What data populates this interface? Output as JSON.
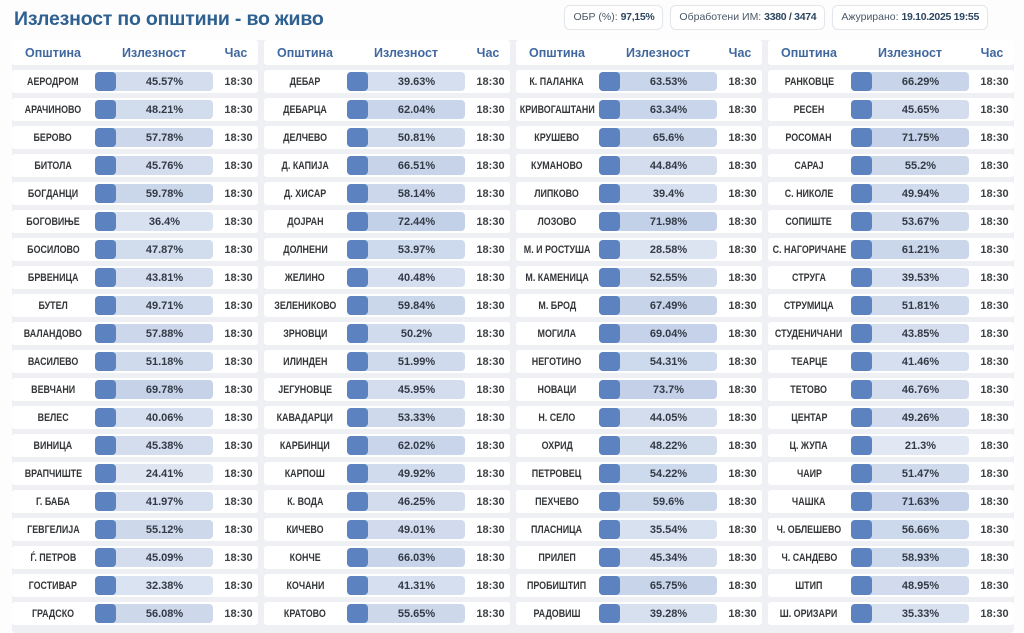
{
  "page_title": "Излезност по општини - во живо",
  "stats": [
    {
      "label": "ОБР (%):",
      "value": "97,15%"
    },
    {
      "label": "Обработени ИМ:",
      "value": "3380 / 3474"
    },
    {
      "label": "Ажурирано:",
      "value": "19.10.2025 19:55"
    }
  ],
  "table": {
    "headers": {
      "municipality": "Општина",
      "turnout": "Излезност",
      "time": "Час"
    },
    "columns": [
      [
        {
          "name": "АЕРОДРОМ",
          "turnout": "45.57%",
          "pct": 45.57,
          "time": "18:30"
        },
        {
          "name": "АРАЧИНОВО",
          "turnout": "48.21%",
          "pct": 48.21,
          "time": "18:30"
        },
        {
          "name": "БЕРОВО",
          "turnout": "57.78%",
          "pct": 57.78,
          "time": "18:30"
        },
        {
          "name": "БИТОЛА",
          "turnout": "45.76%",
          "pct": 45.76,
          "time": "18:30"
        },
        {
          "name": "БОГДАНЦИ",
          "turnout": "59.78%",
          "pct": 59.78,
          "time": "18:30"
        },
        {
          "name": "БОГОВИЊЕ",
          "turnout": "36.4%",
          "pct": 36.4,
          "time": "18:30"
        },
        {
          "name": "БОСИЛОВО",
          "turnout": "47.87%",
          "pct": 47.87,
          "time": "18:30"
        },
        {
          "name": "БРВЕНИЦА",
          "turnout": "43.81%",
          "pct": 43.81,
          "time": "18:30"
        },
        {
          "name": "БУТЕЛ",
          "turnout": "49.71%",
          "pct": 49.71,
          "time": "18:30"
        },
        {
          "name": "ВАЛАНДОВО",
          "turnout": "57.88%",
          "pct": 57.88,
          "time": "18:30"
        },
        {
          "name": "ВАСИЛЕВО",
          "turnout": "51.18%",
          "pct": 51.18,
          "time": "18:30"
        },
        {
          "name": "ВЕВЧАНИ",
          "turnout": "69.78%",
          "pct": 69.78,
          "time": "18:30"
        },
        {
          "name": "ВЕЛЕС",
          "turnout": "40.06%",
          "pct": 40.06,
          "time": "18:30"
        },
        {
          "name": "ВИНИЦА",
          "turnout": "45.38%",
          "pct": 45.38,
          "time": "18:30"
        },
        {
          "name": "ВРАПЧИШТЕ",
          "turnout": "24.41%",
          "pct": 24.41,
          "time": "18:30"
        },
        {
          "name": "Г. БАБА",
          "turnout": "41.97%",
          "pct": 41.97,
          "time": "18:30"
        },
        {
          "name": "ГЕВГЕЛИЈА",
          "turnout": "55.12%",
          "pct": 55.12,
          "time": "18:30"
        },
        {
          "name": "Ѓ. ПЕТРОВ",
          "turnout": "45.09%",
          "pct": 45.09,
          "time": "18:30"
        },
        {
          "name": "ГОСТИВАР",
          "turnout": "32.38%",
          "pct": 32.38,
          "time": "18:30"
        },
        {
          "name": "ГРАДСКО",
          "turnout": "56.08%",
          "pct": 56.08,
          "time": "18:30"
        }
      ],
      [
        {
          "name": "ДЕБАР",
          "turnout": "39.63%",
          "pct": 39.63,
          "time": "18:30"
        },
        {
          "name": "ДЕБАРЦА",
          "turnout": "62.04%",
          "pct": 62.04,
          "time": "18:30"
        },
        {
          "name": "ДЕЛЧЕВО",
          "turnout": "50.81%",
          "pct": 50.81,
          "time": "18:30"
        },
        {
          "name": "Д. КАПИЈА",
          "turnout": "66.51%",
          "pct": 66.51,
          "time": "18:30"
        },
        {
          "name": "Д. ХИСАР",
          "turnout": "58.14%",
          "pct": 58.14,
          "time": "18:30"
        },
        {
          "name": "ДОЈРАН",
          "turnout": "72.44%",
          "pct": 72.44,
          "time": "18:30"
        },
        {
          "name": "ДОЛНЕНИ",
          "turnout": "53.97%",
          "pct": 53.97,
          "time": "18:30"
        },
        {
          "name": "ЖЕЛИНО",
          "turnout": "40.48%",
          "pct": 40.48,
          "time": "18:30"
        },
        {
          "name": "ЗЕЛЕНИКОВО",
          "turnout": "59.84%",
          "pct": 59.84,
          "time": "18:30"
        },
        {
          "name": "ЗРНОВЦИ",
          "turnout": "50.2%",
          "pct": 50.2,
          "time": "18:30"
        },
        {
          "name": "ИЛИНДЕН",
          "turnout": "51.99%",
          "pct": 51.99,
          "time": "18:30"
        },
        {
          "name": "ЈЕГУНОВЦЕ",
          "turnout": "45.95%",
          "pct": 45.95,
          "time": "18:30"
        },
        {
          "name": "КАВАДАРЦИ",
          "turnout": "53.33%",
          "pct": 53.33,
          "time": "18:30"
        },
        {
          "name": "КАРБИНЦИ",
          "turnout": "62.02%",
          "pct": 62.02,
          "time": "18:30"
        },
        {
          "name": "КАРПОШ",
          "turnout": "49.92%",
          "pct": 49.92,
          "time": "18:30"
        },
        {
          "name": "К. ВОДА",
          "turnout": "46.25%",
          "pct": 46.25,
          "time": "18:30"
        },
        {
          "name": "КИЧЕВО",
          "turnout": "49.01%",
          "pct": 49.01,
          "time": "18:30"
        },
        {
          "name": "КОНЧЕ",
          "turnout": "66.03%",
          "pct": 66.03,
          "time": "18:30"
        },
        {
          "name": "КОЧАНИ",
          "turnout": "41.31%",
          "pct": 41.31,
          "time": "18:30"
        },
        {
          "name": "КРАТОВО",
          "turnout": "55.65%",
          "pct": 55.65,
          "time": "18:30"
        }
      ],
      [
        {
          "name": "К. ПАЛАНКА",
          "turnout": "63.53%",
          "pct": 63.53,
          "time": "18:30"
        },
        {
          "name": "КРИВОГАШТАНИ",
          "turnout": "63.34%",
          "pct": 63.34,
          "time": "18:30"
        },
        {
          "name": "КРУШЕВО",
          "turnout": "65.6%",
          "pct": 65.6,
          "time": "18:30"
        },
        {
          "name": "КУМАНОВО",
          "turnout": "44.84%",
          "pct": 44.84,
          "time": "18:30"
        },
        {
          "name": "ЛИПКОВО",
          "turnout": "39.4%",
          "pct": 39.4,
          "time": "18:30"
        },
        {
          "name": "ЛОЗОВО",
          "turnout": "71.98%",
          "pct": 71.98,
          "time": "18:30"
        },
        {
          "name": "М. И РОСТУША",
          "turnout": "28.58%",
          "pct": 28.58,
          "time": "18:30"
        },
        {
          "name": "М. КАМЕНИЦА",
          "turnout": "52.55%",
          "pct": 52.55,
          "time": "18:30"
        },
        {
          "name": "М. БРОД",
          "turnout": "67.49%",
          "pct": 67.49,
          "time": "18:30"
        },
        {
          "name": "МОГИЛА",
          "turnout": "69.04%",
          "pct": 69.04,
          "time": "18:30"
        },
        {
          "name": "НЕГОТИНО",
          "turnout": "54.31%",
          "pct": 54.31,
          "time": "18:30"
        },
        {
          "name": "НОВАЦИ",
          "turnout": "73.7%",
          "pct": 73.7,
          "time": "18:30"
        },
        {
          "name": "Н. СЕЛО",
          "turnout": "44.05%",
          "pct": 44.05,
          "time": "18:30"
        },
        {
          "name": "ОХРИД",
          "turnout": "48.22%",
          "pct": 48.22,
          "time": "18:30"
        },
        {
          "name": "ПЕТРОВЕЦ",
          "turnout": "54.22%",
          "pct": 54.22,
          "time": "18:30"
        },
        {
          "name": "ПЕХЧЕВО",
          "turnout": "59.6%",
          "pct": 59.6,
          "time": "18:30"
        },
        {
          "name": "ПЛАСНИЦА",
          "turnout": "35.54%",
          "pct": 35.54,
          "time": "18:30"
        },
        {
          "name": "ПРИЛЕП",
          "turnout": "45.34%",
          "pct": 45.34,
          "time": "18:30"
        },
        {
          "name": "ПРОБИШТИП",
          "turnout": "65.75%",
          "pct": 65.75,
          "time": "18:30"
        },
        {
          "name": "РАДОВИШ",
          "turnout": "39.28%",
          "pct": 39.28,
          "time": "18:30"
        }
      ],
      [
        {
          "name": "РАНКОВЦЕ",
          "turnout": "66.29%",
          "pct": 66.29,
          "time": "18:30"
        },
        {
          "name": "РЕСЕН",
          "turnout": "45.65%",
          "pct": 45.65,
          "time": "18:30"
        },
        {
          "name": "РОСОМАН",
          "turnout": "71.75%",
          "pct": 71.75,
          "time": "18:30"
        },
        {
          "name": "САРАЈ",
          "turnout": "55.2%",
          "pct": 55.2,
          "time": "18:30"
        },
        {
          "name": "С. НИКОЛЕ",
          "turnout": "49.94%",
          "pct": 49.94,
          "time": "18:30"
        },
        {
          "name": "СОПИШТЕ",
          "turnout": "53.67%",
          "pct": 53.67,
          "time": "18:30"
        },
        {
          "name": "С. НАГОРИЧАНЕ",
          "turnout": "61.21%",
          "pct": 61.21,
          "time": "18:30"
        },
        {
          "name": "СТРУГА",
          "turnout": "39.53%",
          "pct": 39.53,
          "time": "18:30"
        },
        {
          "name": "СТРУМИЦА",
          "turnout": "51.81%",
          "pct": 51.81,
          "time": "18:30"
        },
        {
          "name": "СТУДЕНИЧАНИ",
          "turnout": "43.85%",
          "pct": 43.85,
          "time": "18:30"
        },
        {
          "name": "ТЕАРЦЕ",
          "turnout": "41.46%",
          "pct": 41.46,
          "time": "18:30"
        },
        {
          "name": "ТЕТОВО",
          "turnout": "46.76%",
          "pct": 46.76,
          "time": "18:30"
        },
        {
          "name": "ЦЕНТАР",
          "turnout": "49.26%",
          "pct": 49.26,
          "time": "18:30"
        },
        {
          "name": "Ц. ЖУПА",
          "turnout": "21.3%",
          "pct": 21.3,
          "time": "18:30"
        },
        {
          "name": "ЧАИР",
          "turnout": "51.47%",
          "pct": 51.47,
          "time": "18:30"
        },
        {
          "name": "ЧАШКА",
          "turnout": "71.63%",
          "pct": 71.63,
          "time": "18:30"
        },
        {
          "name": "Ч. ОБЛЕШЕВО",
          "turnout": "56.66%",
          "pct": 56.66,
          "time": "18:30"
        },
        {
          "name": "Ч. САНДЕВО",
          "turnout": "58.93%",
          "pct": 58.93,
          "time": "18:30"
        },
        {
          "name": "ШТИП",
          "turnout": "48.95%",
          "pct": 48.95,
          "time": "18:30"
        },
        {
          "name": "Ш. ОРИЗАРИ",
          "turnout": "35.33%",
          "pct": 35.33,
          "time": "18:30"
        }
      ]
    ]
  },
  "colors": {
    "title": "#2b5e8f",
    "header_text": "#40689f",
    "bar_cap": "#5d82c0",
    "bar_track_rgb": "93,130,192",
    "board_bg": "#eef0f3"
  }
}
